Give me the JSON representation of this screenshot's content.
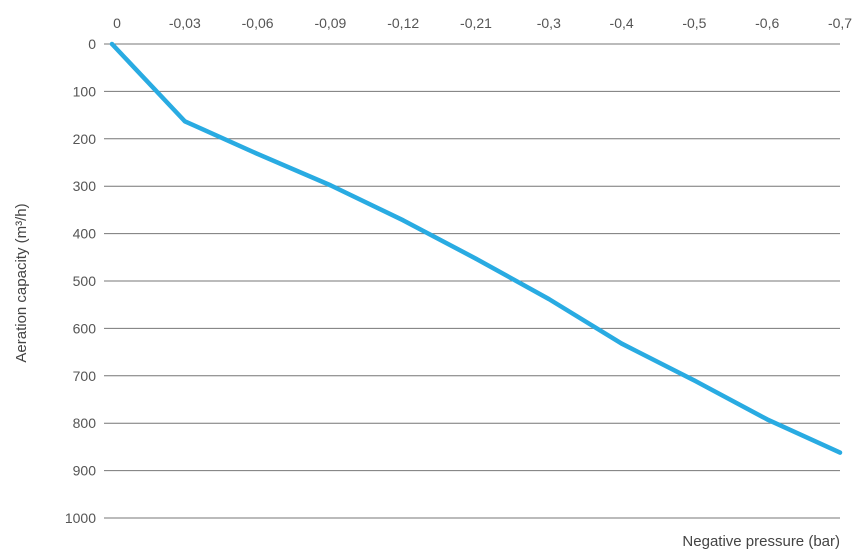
{
  "chart_data": {
    "type": "line",
    "title": "",
    "xlabel": "Negative pressure (bar)",
    "ylabel": "Aeration capacity (m³/h)",
    "x_tick_labels": [
      "0",
      "-0,03",
      "-0,06",
      "-0,09",
      "-0,12",
      "-0,21",
      "-0,3",
      "-0,4",
      "-0,5",
      "-0,6",
      "-0,7"
    ],
    "x_axis_position": "top",
    "y_tick_labels": [
      "0",
      "100",
      "200",
      "300",
      "400",
      "500",
      "600",
      "700",
      "800",
      "900",
      "1000"
    ],
    "ylim": [
      0,
      1000
    ],
    "y_inverted": true,
    "grid": "horizontal",
    "series": [
      {
        "color": "#29abe2",
        "x": [
          "0",
          "-0,03",
          "-0,06",
          "-0,09",
          "-0,12",
          "-0,21",
          "-0,3",
          "-0,4",
          "-0,5",
          "-0,6",
          "-0,7"
        ],
        "values": [
          0,
          163,
          232,
          298,
          372,
          453,
          538,
          632,
          710,
          792,
          862
        ]
      }
    ]
  }
}
